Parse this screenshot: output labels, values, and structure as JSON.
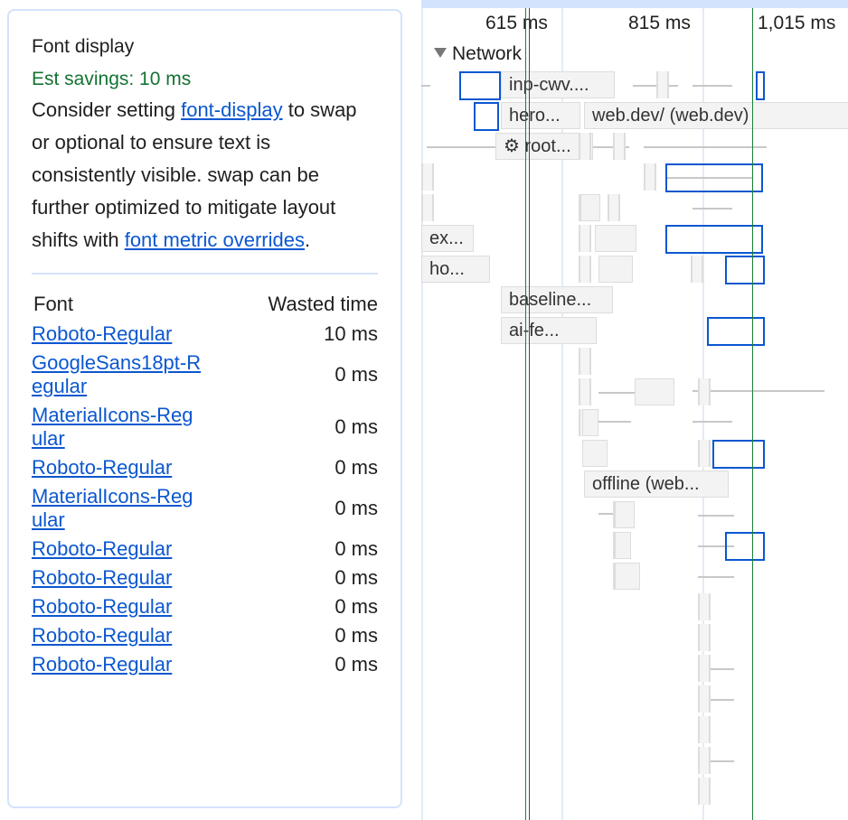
{
  "panel": {
    "title": "Font display",
    "savings": "Est savings: 10 ms",
    "desc_1": "Consider setting ",
    "link_1": "font-display",
    "desc_2": " to swap or optional to ensure text is consistently visible. swap can be further optimized to mitigate layout shifts with ",
    "link_2": "font metric overrides",
    "desc_3": ".",
    "table": {
      "headers": [
        "Font",
        "Wasted time"
      ],
      "rows": [
        {
          "font": "Roboto-Regular",
          "time": "10 ms"
        },
        {
          "font": "GoogleSans18pt-Regular",
          "time": "0 ms"
        },
        {
          "font": "MaterialIcons-Regular",
          "time": "0 ms"
        },
        {
          "font": "Roboto-Regular",
          "time": "0 ms"
        },
        {
          "font": "MaterialIcons-Regular",
          "time": "0 ms"
        },
        {
          "font": "Roboto-Regular",
          "time": "0 ms"
        },
        {
          "font": "Roboto-Regular",
          "time": "0 ms"
        },
        {
          "font": "Roboto-Regular",
          "time": "0 ms"
        },
        {
          "font": "Roboto-Regular",
          "time": "0 ms"
        },
        {
          "font": "Roboto-Regular",
          "time": "0 ms"
        }
      ]
    }
  },
  "timeline": {
    "ticks": [
      "615 ms",
      "815 ms",
      "1,015 ms"
    ],
    "track": "Network",
    "requests": [
      "inp-cwv....",
      "hero...",
      "web.dev/ (web.dev)",
      "⚙ root...",
      "ex...",
      "ho...",
      "baseline...",
      "ai-fe...",
      "offline (web..."
    ],
    "colors": {
      "selection": "#0b57d0",
      "marker": "#188038"
    }
  }
}
